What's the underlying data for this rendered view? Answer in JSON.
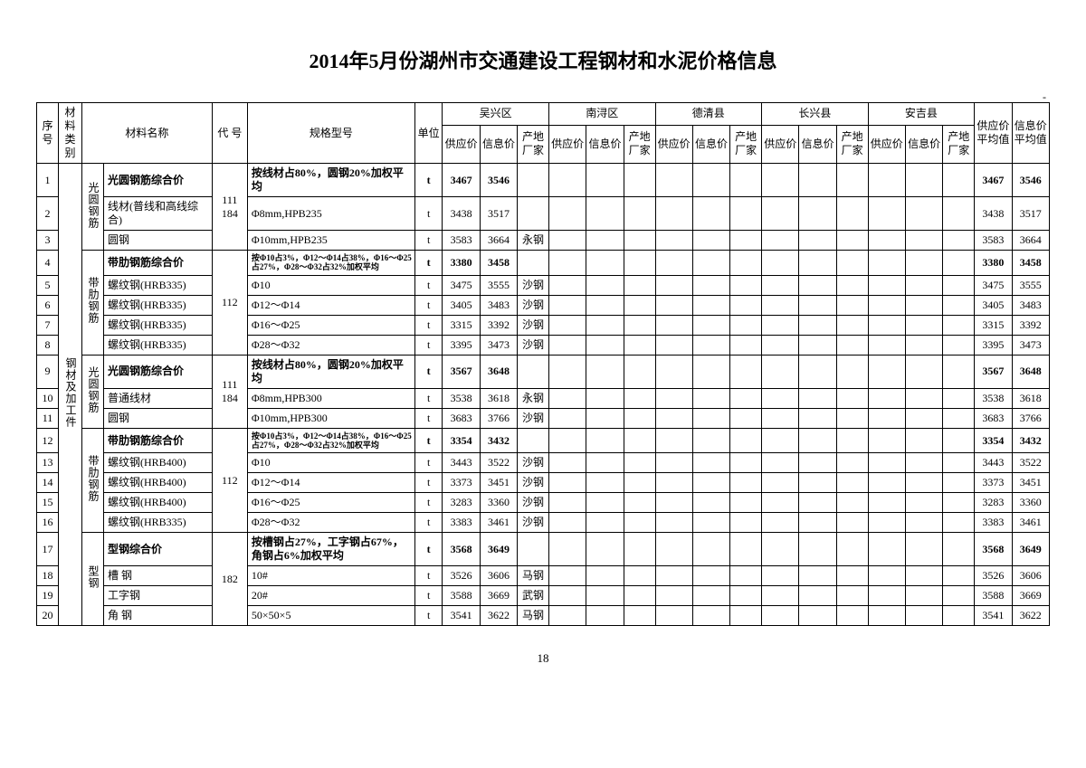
{
  "title": "2014年5月份湖州市交通建设工程钢材和水泥价格信息",
  "page_number": "18",
  "header": {
    "seq": "序号",
    "category": "材料类别",
    "name": "材料名称",
    "code": "代 号",
    "spec": "规格型号",
    "unit": "单位",
    "regions": [
      "吴兴区",
      "南浔区",
      "德清县",
      "长兴县",
      "安吉县"
    ],
    "sub_supply": "供应价",
    "sub_info": "信息价",
    "sub_maker": "产地厂家",
    "avg_supply": "供应价平均值",
    "avg_info": "信息价平均值"
  },
  "category_main": "钢材及加工件",
  "groups": [
    {
      "sub": "光圆钢筋",
      "code": "111 184",
      "rows": [
        1,
        2,
        3
      ]
    },
    {
      "sub": "带肋钢筋",
      "code": "112",
      "rows": [
        4,
        5,
        6,
        7,
        8
      ]
    },
    {
      "sub": "光圆钢筋",
      "code": "111 184",
      "rows": [
        9,
        10,
        11
      ]
    },
    {
      "sub": "带肋钢筋",
      "code": "112",
      "rows": [
        12,
        13,
        14,
        15,
        16
      ]
    },
    {
      "sub": "型钢",
      "code": "182",
      "rows": [
        17,
        18,
        19,
        20
      ]
    }
  ],
  "rows": [
    {
      "n": "1",
      "name": "光圆钢筋综合价",
      "spec": "按线材占80%，圆钢20%加权平均",
      "unit": "t",
      "p1": "3467",
      "p2": "3546",
      "mk": "",
      "a1": "3467",
      "a2": "3546",
      "bold": true
    },
    {
      "n": "2",
      "name": "线材(普线和高线综合)",
      "spec": "Φ8mm,HPB235",
      "unit": "t",
      "p1": "3438",
      "p2": "3517",
      "mk": "",
      "a1": "3438",
      "a2": "3517"
    },
    {
      "n": "3",
      "name": "圆钢",
      "spec": "Φ10mm,HPB235",
      "unit": "t",
      "p1": "3583",
      "p2": "3664",
      "mk": "永钢",
      "a1": "3583",
      "a2": "3664"
    },
    {
      "n": "4",
      "name": "带肋钢筋综合价",
      "spec": "按Φ10占3%，Φ12～Φ14占38%，Φ16～Φ25占27%，Φ28～Φ32占32%加权平均",
      "unit": "t",
      "p1": "3380",
      "p2": "3458",
      "mk": "",
      "a1": "3380",
      "a2": "3458",
      "bold": true,
      "small": true
    },
    {
      "n": "5",
      "name": "螺纹钢(HRB335)",
      "spec": "Φ10",
      "unit": "t",
      "p1": "3475",
      "p2": "3555",
      "mk": "沙钢",
      "a1": "3475",
      "a2": "3555"
    },
    {
      "n": "6",
      "name": "螺纹钢(HRB335)",
      "spec": "Φ12～Φ14",
      "unit": "t",
      "p1": "3405",
      "p2": "3483",
      "mk": "沙钢",
      "a1": "3405",
      "a2": "3483"
    },
    {
      "n": "7",
      "name": "螺纹钢(HRB335)",
      "spec": "Φ16～Φ25",
      "unit": "t",
      "p1": "3315",
      "p2": "3392",
      "mk": "沙钢",
      "a1": "3315",
      "a2": "3392"
    },
    {
      "n": "8",
      "name": "螺纹钢(HRB335)",
      "spec": "Φ28～Φ32",
      "unit": "t",
      "p1": "3395",
      "p2": "3473",
      "mk": "沙钢",
      "a1": "3395",
      "a2": "3473"
    },
    {
      "n": "9",
      "name": "光圆钢筋综合价",
      "spec": "按线材占80%，圆钢20%加权平均",
      "unit": "t",
      "p1": "3567",
      "p2": "3648",
      "mk": "",
      "a1": "3567",
      "a2": "3648",
      "bold": true
    },
    {
      "n": "10",
      "name": "普通线材",
      "spec": "Φ8mm,HPB300",
      "unit": "t",
      "p1": "3538",
      "p2": "3618",
      "mk": "永钢",
      "a1": "3538",
      "a2": "3618"
    },
    {
      "n": "11",
      "name": "圆钢",
      "spec": "Φ10mm,HPB300",
      "unit": "t",
      "p1": "3683",
      "p2": "3766",
      "mk": "沙钢",
      "a1": "3683",
      "a2": "3766"
    },
    {
      "n": "12",
      "name": "带肋钢筋综合价",
      "spec": "按Φ10占3%，Φ12～Φ14占38%，Φ16～Φ25占27%，Φ28～Φ32占32%加权平均",
      "unit": "t",
      "p1": "3354",
      "p2": "3432",
      "mk": "",
      "a1": "3354",
      "a2": "3432",
      "bold": true,
      "small": true
    },
    {
      "n": "13",
      "name": "螺纹钢(HRB400)",
      "spec": "Φ10",
      "unit": "t",
      "p1": "3443",
      "p2": "3522",
      "mk": "沙钢",
      "a1": "3443",
      "a2": "3522"
    },
    {
      "n": "14",
      "name": "螺纹钢(HRB400)",
      "spec": "Φ12～Φ14",
      "unit": "t",
      "p1": "3373",
      "p2": "3451",
      "mk": "沙钢",
      "a1": "3373",
      "a2": "3451"
    },
    {
      "n": "15",
      "name": "螺纹钢(HRB400)",
      "spec": "Φ16～Φ25",
      "unit": "t",
      "p1": "3283",
      "p2": "3360",
      "mk": "沙钢",
      "a1": "3283",
      "a2": "3360"
    },
    {
      "n": "16",
      "name": "螺纹钢(HRB335)",
      "spec": "Φ28～Φ32",
      "unit": "t",
      "p1": "3383",
      "p2": "3461",
      "mk": "沙钢",
      "a1": "3383",
      "a2": "3461"
    },
    {
      "n": "17",
      "name": "型钢综合价",
      "spec": "按槽钢占27%，工字钢占67%，角钢占6%加权平均",
      "unit": "t",
      "p1": "3568",
      "p2": "3649",
      "mk": "",
      "a1": "3568",
      "a2": "3649",
      "bold": true
    },
    {
      "n": "18",
      "name": "槽 钢",
      "spec": "10#",
      "unit": "t",
      "p1": "3526",
      "p2": "3606",
      "mk": "马钢",
      "a1": "3526",
      "a2": "3606"
    },
    {
      "n": "19",
      "name": "工字钢",
      "spec": "20#",
      "unit": "t",
      "p1": "3588",
      "p2": "3669",
      "mk": "武钢",
      "a1": "3588",
      "a2": "3669"
    },
    {
      "n": "20",
      "name": "角 钢",
      "spec": "50×50×5",
      "unit": "t",
      "p1": "3541",
      "p2": "3622",
      "mk": "马钢",
      "a1": "3541",
      "a2": "3622"
    }
  ]
}
